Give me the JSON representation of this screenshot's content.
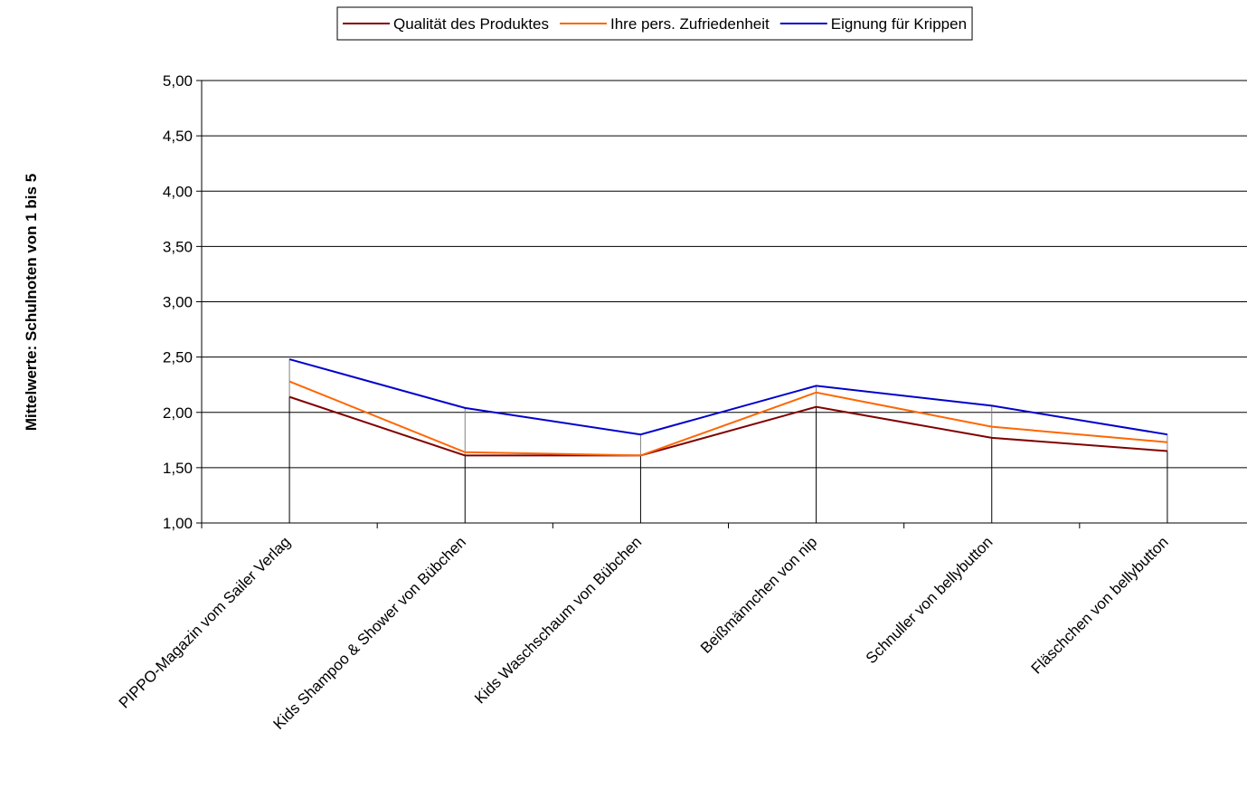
{
  "chart_data": {
    "type": "line",
    "ylabel": "Mittelwerte: Schulnoten von 1 bis 5",
    "xlabel": "",
    "ylim": [
      1.0,
      5.0
    ],
    "y_ticks": [
      "1,00",
      "1,50",
      "2,00",
      "2,50",
      "3,00",
      "3,50",
      "4,00",
      "4,50",
      "5,00"
    ],
    "grid": "horizontal",
    "legend_position": "top",
    "categories": [
      "PIPPO-Magazin vom Sailer Verlag",
      "Kids Shampoo & Shower von Bübchen",
      "Kids Waschschaum von Bübchen",
      "Beißmännchen von nip",
      "Schnuller von bellybutton",
      "Fläschchen von bellybutton"
    ],
    "series": [
      {
        "name": "Qualität des Produktes",
        "color": "#800000",
        "values": [
          2.14,
          1.61,
          1.61,
          2.05,
          1.77,
          1.65
        ]
      },
      {
        "name": "Ihre pers. Zufriedenheit",
        "color": "#FF6600",
        "values": [
          2.28,
          1.64,
          1.61,
          2.18,
          1.87,
          1.73
        ]
      },
      {
        "name": "Eignung für Krippen",
        "color": "#0000CC",
        "values": [
          2.48,
          2.04,
          1.8,
          2.24,
          2.06,
          1.8
        ]
      }
    ]
  }
}
